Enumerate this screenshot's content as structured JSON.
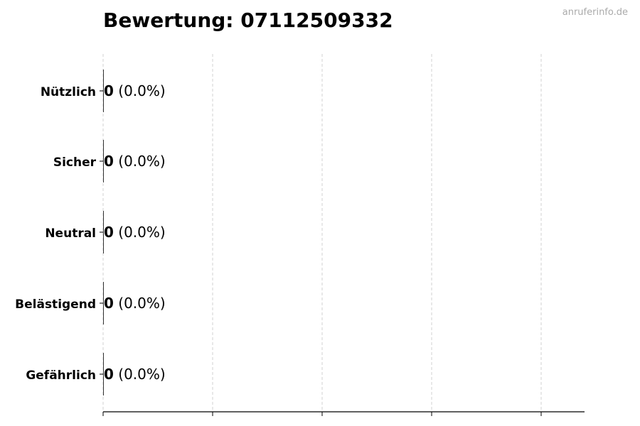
{
  "watermark": "anruferinfo.de",
  "chart_data": {
    "type": "bar",
    "orientation": "horizontal",
    "title": "Bewertung: 07112509332",
    "categories": [
      "Nützlich",
      "Sicher",
      "Neutral",
      "Belästigend",
      "Gefährlich"
    ],
    "values": [
      0,
      0,
      0,
      0,
      0
    ],
    "data_labels": [
      {
        "count": "0",
        "pct": "(0.0%)"
      },
      {
        "count": "0",
        "pct": "(0.0%)"
      },
      {
        "count": "0",
        "pct": "(0.0%)"
      },
      {
        "count": "0",
        "pct": "(0.0%)"
      },
      {
        "count": "0",
        "pct": "(0.0%)"
      }
    ],
    "xlabel": "",
    "ylabel": "",
    "x_tick_labels_shown": false,
    "grid": "vertical dashed",
    "colors": {
      "grid": "#d0d0d0",
      "axis": "#000000",
      "bar": "#333333"
    }
  }
}
